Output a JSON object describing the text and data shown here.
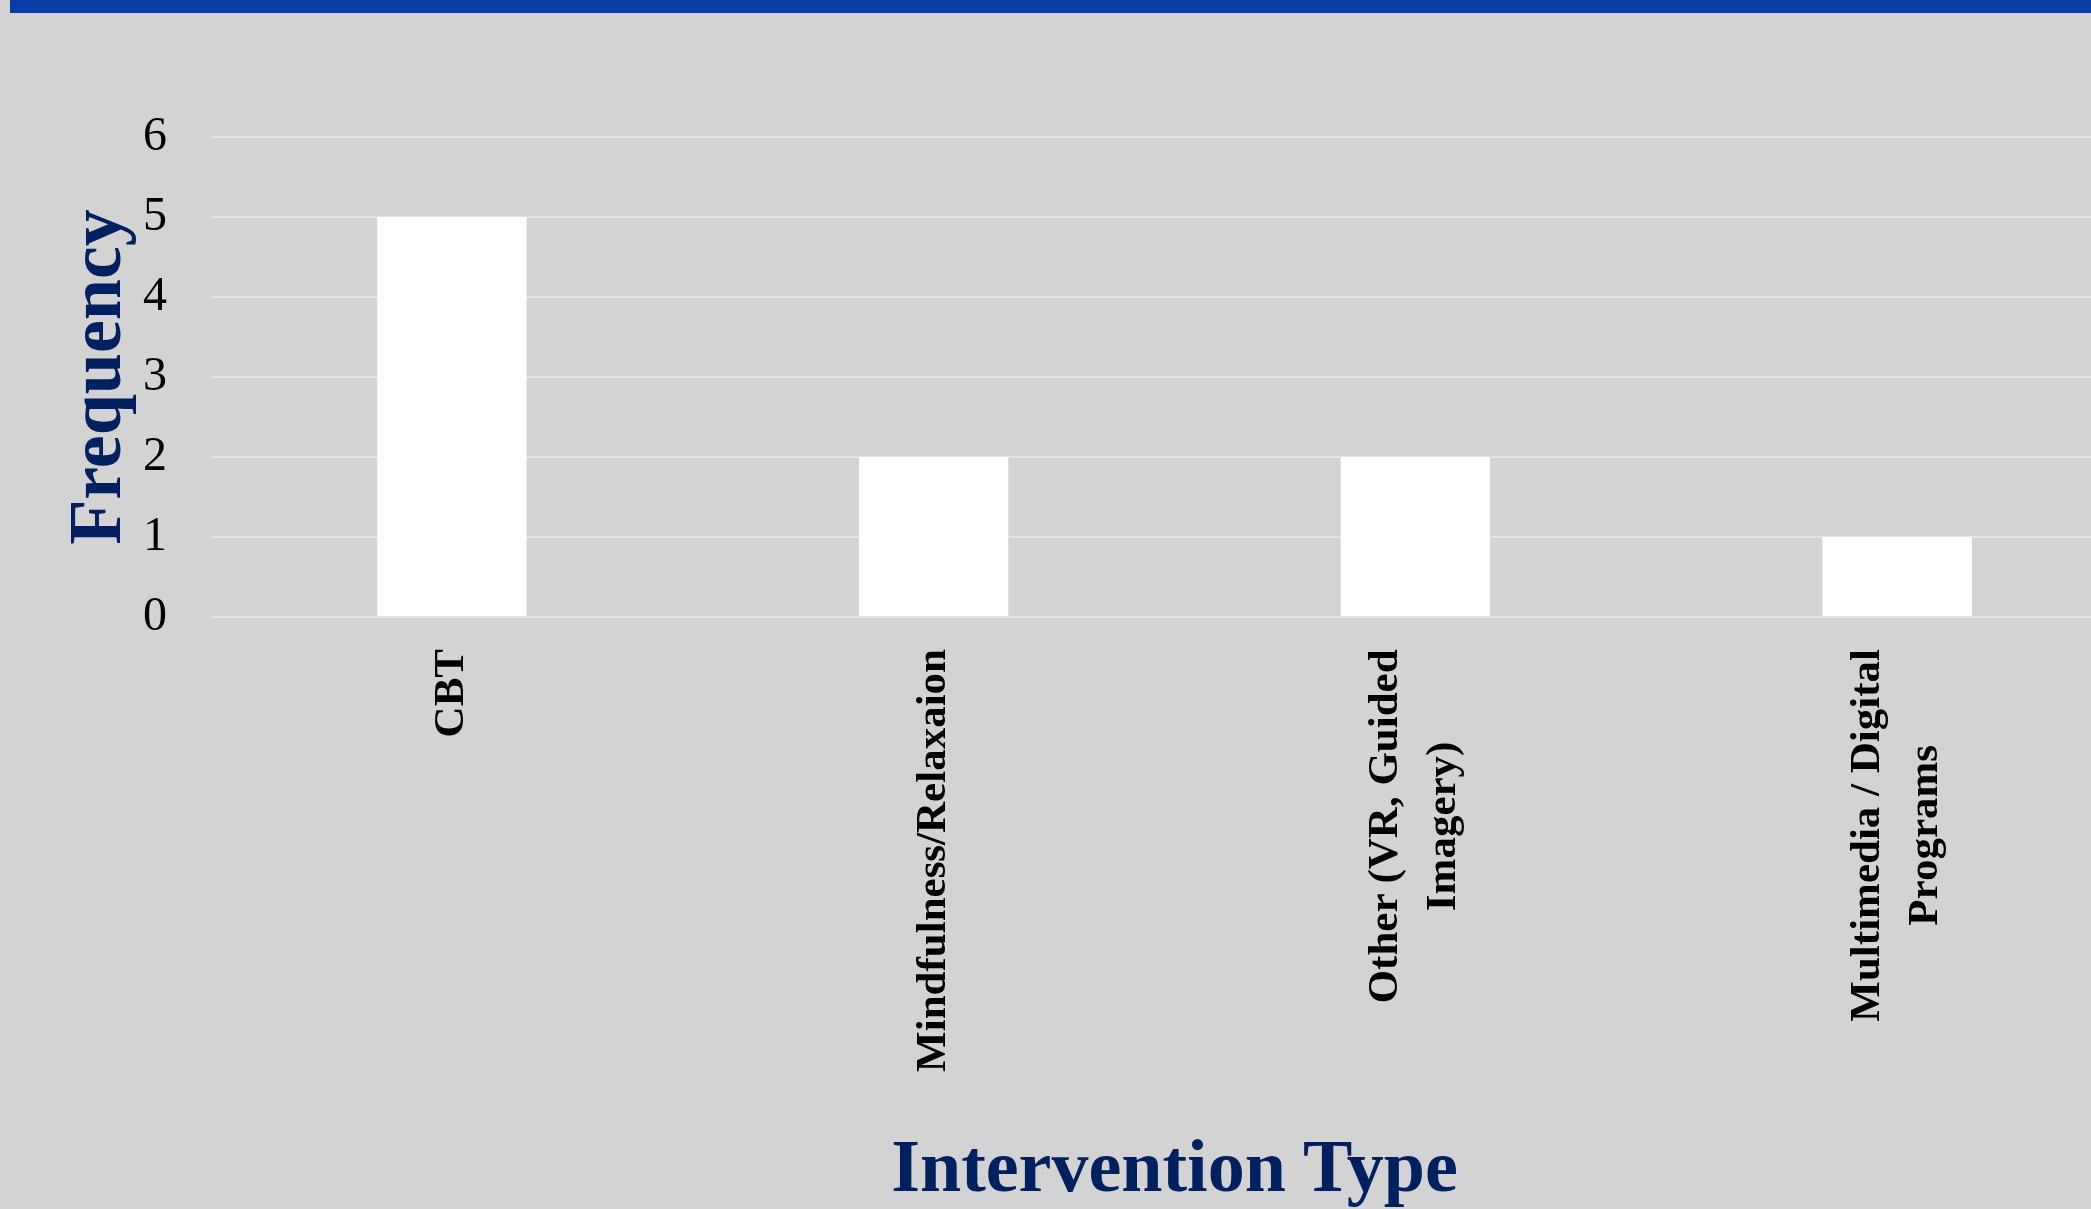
{
  "chart_data": {
    "type": "bar",
    "xlabel": "Intervention Type",
    "ylabel": "Frequency",
    "categories": [
      "CBT",
      "Mindfulness/Relaxaion",
      "Other (VR, Guided Imagery)",
      "Multimedia / Digital Programs"
    ],
    "values": [
      5,
      2,
      2,
      1
    ],
    "color": "#ffffff",
    "ylim": [
      0,
      6
    ],
    "yticks": [
      0,
      1,
      2,
      3,
      4,
      5,
      6
    ],
    "grid": "y"
  }
}
